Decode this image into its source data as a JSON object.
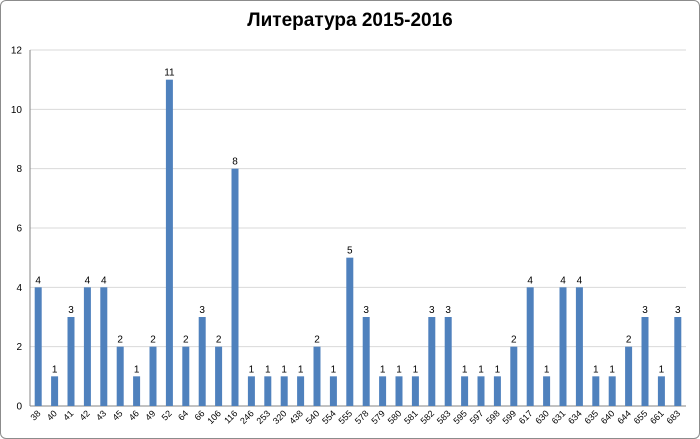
{
  "chart_data": {
    "type": "bar",
    "title": "Литература 2015-2016",
    "xlabel": "",
    "ylabel": "",
    "ylim": [
      0,
      12
    ],
    "ytick_step": 2,
    "grid": true,
    "legend": "none",
    "bar_color": "#4f81bd",
    "categories": [
      "38",
      "40",
      "41",
      "42",
      "43",
      "45",
      "46",
      "49",
      "52",
      "64",
      "66",
      "106",
      "116",
      "246",
      "253",
      "320",
      "438",
      "540",
      "554",
      "555",
      "578",
      "579",
      "580",
      "581",
      "582",
      "583",
      "595",
      "597",
      "598",
      "599",
      "617",
      "630",
      "631",
      "634",
      "635",
      "640",
      "644",
      "655",
      "661",
      "683"
    ],
    "values": [
      4,
      1,
      3,
      4,
      4,
      2,
      1,
      2,
      11,
      2,
      3,
      2,
      8,
      1,
      1,
      1,
      1,
      2,
      1,
      5,
      3,
      1,
      1,
      1,
      3,
      3,
      1,
      1,
      1,
      2,
      4,
      1,
      4,
      4,
      1,
      1,
      2,
      3,
      1,
      3
    ]
  }
}
